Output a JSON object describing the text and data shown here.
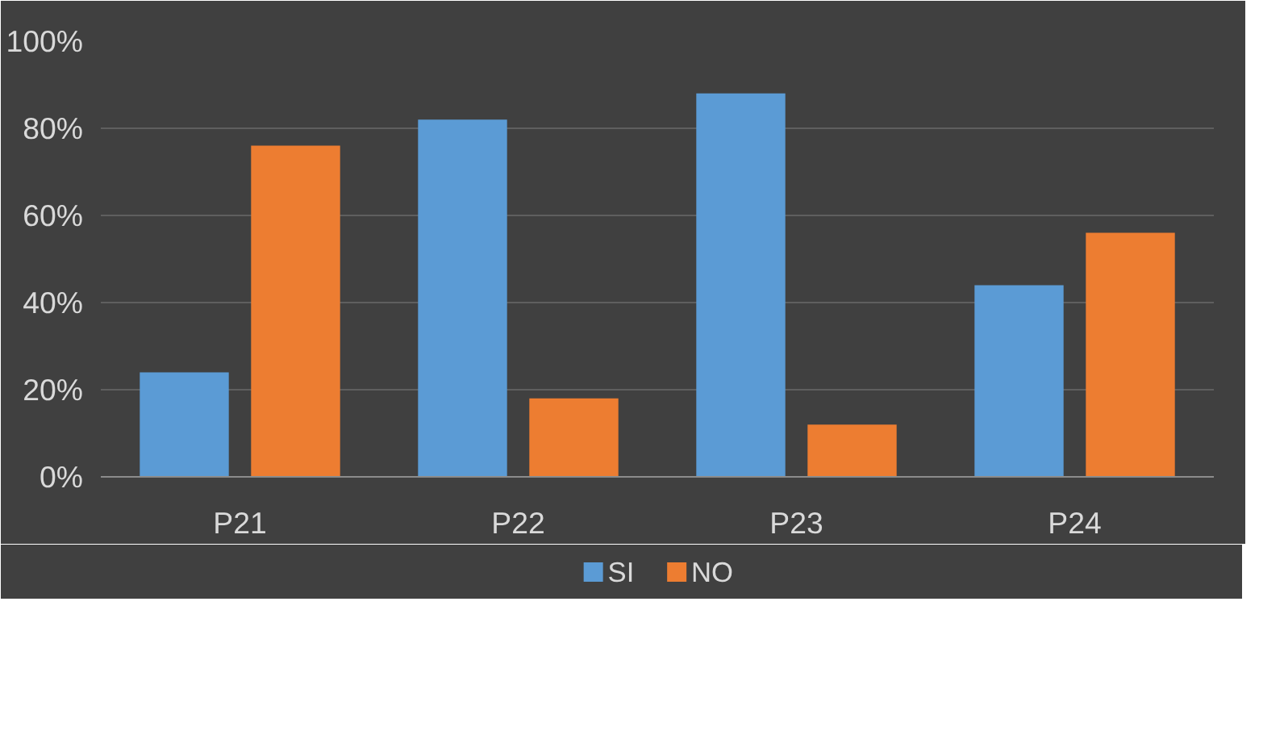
{
  "chart_data": {
    "type": "bar",
    "categories": [
      "P21",
      "P22",
      "P23",
      "P24"
    ],
    "series": [
      {
        "name": "SI",
        "color": "#5b9bd5",
        "values": [
          24,
          82,
          88,
          44
        ]
      },
      {
        "name": "NO",
        "color": "#ed7d31",
        "values": [
          76,
          18,
          12,
          56
        ]
      }
    ],
    "ylim": [
      0,
      100
    ],
    "yticks": [
      {
        "value": 0,
        "label": "0%"
      },
      {
        "value": 20,
        "label": "20%"
      },
      {
        "value": 40,
        "label": "40%"
      },
      {
        "value": 60,
        "label": "60%"
      },
      {
        "value": 80,
        "label": "80%"
      },
      {
        "value": 100,
        "label": "100%"
      }
    ],
    "grid": "y",
    "legend": "bottom"
  }
}
